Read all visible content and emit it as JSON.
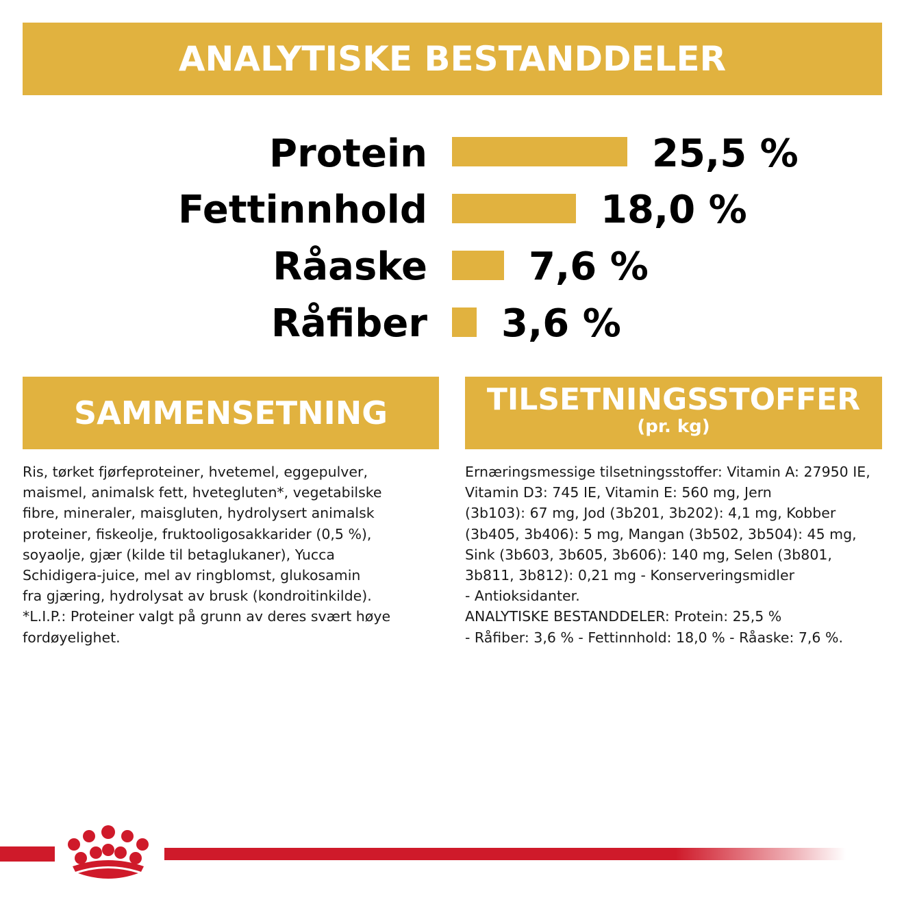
{
  "header": {
    "title": "ANALYTISKE BESTANDDELER"
  },
  "nutrients": [
    {
      "label": "Protein",
      "value_text": "25,5 %",
      "value": 25.5
    },
    {
      "label": "Fettinnhold",
      "value_text": "18,0 %",
      "value": 18.0
    },
    {
      "label": "Råaske",
      "value_text": "7,6 %",
      "value": 7.6
    },
    {
      "label": "Råfiber",
      "value_text": "3,6 %",
      "value": 3.6
    }
  ],
  "composition": {
    "title": "SAMMENSETNING",
    "lines": [
      "Ris, tørket fjørfeproteiner, hvetemel, eggepulver,",
      "maismel, animalsk fett, hvetegluten*, vegetabilske",
      "fibre, mineraler, maisgluten, hydrolysert animalsk",
      "proteiner, fiskeolje, fruktooligosakkarider (0,5 %),",
      "soyaolje, gjær (kilde til betaglukaner), Yucca",
      "Schidigera-juice, mel av ringblomst, glukosamin",
      "fra gjæring, hydrolysat av brusk (kondroitinkilde).",
      "*L.I.P.: Proteiner valgt på grunn av deres svært høye",
      "fordøyelighet."
    ]
  },
  "additives": {
    "title": "TILSETNINGSSTOFFER",
    "subtitle": "(pr. kg)",
    "lines": [
      "Ernæringsmessige tilsetningsstoffer: Vitamin A: 27950 IE,",
      "Vitamin D3: 745 IE, Vitamin E: 560 mg, Jern",
      "(3b103): 67 mg, Jod (3b201, 3b202): 4,1 mg, Kobber",
      "(3b405, 3b406): 5 mg, Mangan (3b502, 3b504): 45 mg,",
      "Sink (3b603, 3b605, 3b606): 140 mg, Selen (3b801,",
      "3b811, 3b812): 0,21 mg - Konserveringsmidler",
      "- Antioksidanter.",
      "ANALYTISKE BESTANDDELER: Protein: 25,5 %",
      "- Råfiber: 3,6 % - Fettinnhold: 18,0 % - Råaske: 7,6 %."
    ]
  },
  "colors": {
    "accent": "#e1b23f",
    "brand_red": "#cf1a2a",
    "text": "#000000"
  },
  "footer": {
    "logo_icon": "royal-canin-crown-icon"
  }
}
